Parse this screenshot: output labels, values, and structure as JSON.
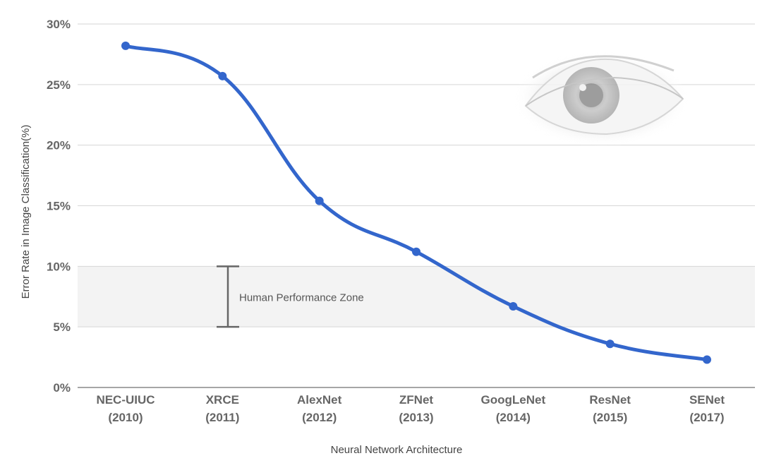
{
  "chart_data": {
    "type": "line",
    "title": "",
    "xlabel": "Neural Network Architecture",
    "ylabel": "Error Rate in Image Classification(%)",
    "ylim": [
      0,
      30
    ],
    "y_ticks": [
      "0%",
      "5%",
      "10%",
      "15%",
      "20%",
      "25%",
      "30%"
    ],
    "categories": [
      {
        "name": "NEC-UIUC",
        "year": "(2010)"
      },
      {
        "name": "XRCE",
        "year": "(2011)"
      },
      {
        "name": "AlexNet",
        "year": "(2012)"
      },
      {
        "name": "ZFNet",
        "year": "(2013)"
      },
      {
        "name": "GoogLeNet",
        "year": "(2014)"
      },
      {
        "name": "ResNet",
        "year": "(2015)"
      },
      {
        "name": "SENet",
        "year": "(2017)"
      }
    ],
    "series": [
      {
        "values": [
          28.2,
          25.7,
          15.4,
          11.2,
          6.7,
          3.6,
          2.3
        ],
        "color": "#3366cc"
      }
    ],
    "grid": true,
    "human_zone": {
      "label": "Human Performance Zone",
      "low": 5,
      "high": 10,
      "color": "#f3f3f3"
    },
    "decoration": "eye-illustration"
  }
}
